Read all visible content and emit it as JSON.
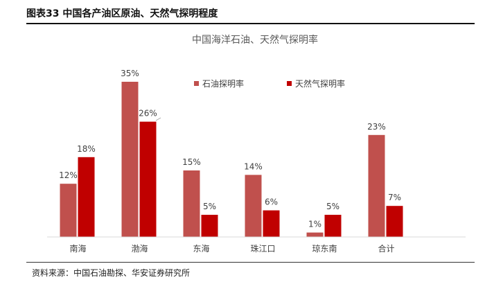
{
  "figure_title": "图表33 中国各产油区原油、天然气探明程度",
  "source": "资料来源：中国石油勘探、华安证券研究所",
  "chart_data": {
    "type": "bar",
    "title": "中国海洋石油、天然气探明率",
    "categories": [
      "南海",
      "渤海",
      "东海",
      "珠江口",
      "琼东南",
      "合计"
    ],
    "series": [
      {
        "name": "石油探明率",
        "values": [
          12,
          35,
          15,
          14,
          1,
          23
        ],
        "labels": [
          "12%",
          "35%",
          "15%",
          "14%",
          "1%",
          "23%"
        ],
        "color": "#C0504D"
      },
      {
        "name": "天然气探明率",
        "values": [
          18,
          26,
          5,
          6,
          5,
          7
        ],
        "labels": [
          "18%",
          "26%",
          "5%",
          "6%",
          "5%",
          "7%"
        ],
        "color": "#C00000"
      }
    ],
    "ylim": [
      0,
      40
    ],
    "grid": false,
    "legend_position": "top-right",
    "axis_color": "#D9D9D9"
  }
}
